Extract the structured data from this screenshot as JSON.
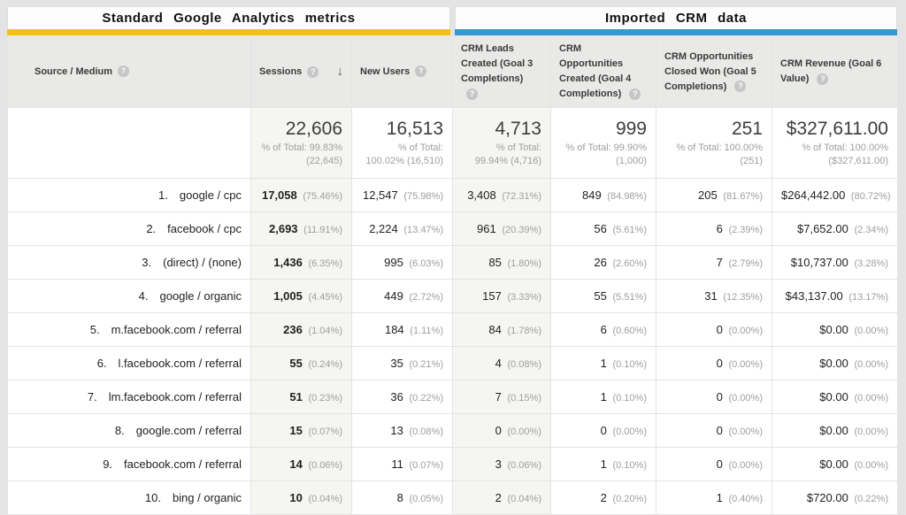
{
  "icons": {
    "help": "?",
    "sort_desc": "↓"
  },
  "groups": {
    "left": {
      "title": "Standard Google Analytics metrics",
      "accent_color": "#F4C20D"
    },
    "right": {
      "title": "Imported CRM data",
      "accent_color": "#3499D3"
    }
  },
  "table": {
    "columns": [
      {
        "id": "source",
        "label": "Source / Medium"
      },
      {
        "id": "sessions",
        "label": "Sessions",
        "sort": "descending"
      },
      {
        "id": "new_users",
        "label": "New Users"
      },
      {
        "id": "crm_leads",
        "label": "CRM Leads Created (Goal 3 Completions)"
      },
      {
        "id": "crm_opps",
        "label": "CRM Opportunities Created (Goal 4 Completions)"
      },
      {
        "id": "crm_closed",
        "label": "CRM Opportunities Closed Won (Goal 5 Completions)"
      },
      {
        "id": "crm_revenue",
        "label": "CRM Revenue (Goal 6 Value)"
      }
    ],
    "totals": {
      "sessions": {
        "value": "22,606",
        "pct": "% of Total: 99.83% (22,645)"
      },
      "new_users": {
        "value": "16,513",
        "pct": "% of Total: 100.02% (16,510)"
      },
      "crm_leads": {
        "value": "4,713",
        "pct": "% of Total: 99.94% (4,716)"
      },
      "crm_opps": {
        "value": "999",
        "pct": "% of Total: 99.90% (1,000)"
      },
      "crm_closed": {
        "value": "251",
        "pct": "% of Total: 100.00% (251)"
      },
      "crm_revenue": {
        "value": "$327,611.00",
        "pct": "% of Total: 100.00% ($327,611.00)"
      }
    },
    "rows": [
      {
        "index": "1.",
        "source": "google / cpc",
        "sessions": {
          "value": "17,058",
          "pct": "(75.46%)"
        },
        "new_users": {
          "value": "12,547",
          "pct": "(75.98%)"
        },
        "crm_leads": {
          "value": "3,408",
          "pct": "(72.31%)"
        },
        "crm_opps": {
          "value": "849",
          "pct": "(84.98%)"
        },
        "crm_closed": {
          "value": "205",
          "pct": "(81.67%)"
        },
        "crm_revenue": {
          "value": "$264,442.00",
          "pct": "(80.72%)"
        }
      },
      {
        "index": "2.",
        "source": "facebook / cpc",
        "sessions": {
          "value": "2,693",
          "pct": "(11.91%)"
        },
        "new_users": {
          "value": "2,224",
          "pct": "(13.47%)"
        },
        "crm_leads": {
          "value": "961",
          "pct": "(20.39%)"
        },
        "crm_opps": {
          "value": "56",
          "pct": "(5.61%)"
        },
        "crm_closed": {
          "value": "6",
          "pct": "(2.39%)"
        },
        "crm_revenue": {
          "value": "$7,652.00",
          "pct": "(2.34%)"
        }
      },
      {
        "index": "3.",
        "source": "(direct) / (none)",
        "sessions": {
          "value": "1,436",
          "pct": "(6.35%)"
        },
        "new_users": {
          "value": "995",
          "pct": "(6.03%)"
        },
        "crm_leads": {
          "value": "85",
          "pct": "(1.80%)"
        },
        "crm_opps": {
          "value": "26",
          "pct": "(2.60%)"
        },
        "crm_closed": {
          "value": "7",
          "pct": "(2.79%)"
        },
        "crm_revenue": {
          "value": "$10,737.00",
          "pct": "(3.28%)"
        }
      },
      {
        "index": "4.",
        "source": "google / organic",
        "sessions": {
          "value": "1,005",
          "pct": "(4.45%)"
        },
        "new_users": {
          "value": "449",
          "pct": "(2.72%)"
        },
        "crm_leads": {
          "value": "157",
          "pct": "(3.33%)"
        },
        "crm_opps": {
          "value": "55",
          "pct": "(5.51%)"
        },
        "crm_closed": {
          "value": "31",
          "pct": "(12.35%)"
        },
        "crm_revenue": {
          "value": "$43,137.00",
          "pct": "(13.17%)"
        }
      },
      {
        "index": "5.",
        "source": "m.facebook.com / referral",
        "sessions": {
          "value": "236",
          "pct": "(1.04%)"
        },
        "new_users": {
          "value": "184",
          "pct": "(1.11%)"
        },
        "crm_leads": {
          "value": "84",
          "pct": "(1.78%)"
        },
        "crm_opps": {
          "value": "6",
          "pct": "(0.60%)"
        },
        "crm_closed": {
          "value": "0",
          "pct": "(0.00%)"
        },
        "crm_revenue": {
          "value": "$0.00",
          "pct": "(0.00%)"
        }
      },
      {
        "index": "6.",
        "source": "l.facebook.com / referral",
        "sessions": {
          "value": "55",
          "pct": "(0.24%)"
        },
        "new_users": {
          "value": "35",
          "pct": "(0.21%)"
        },
        "crm_leads": {
          "value": "4",
          "pct": "(0.08%)"
        },
        "crm_opps": {
          "value": "1",
          "pct": "(0.10%)"
        },
        "crm_closed": {
          "value": "0",
          "pct": "(0.00%)"
        },
        "crm_revenue": {
          "value": "$0.00",
          "pct": "(0.00%)"
        }
      },
      {
        "index": "7.",
        "source": "lm.facebook.com / referral",
        "sessions": {
          "value": "51",
          "pct": "(0.23%)"
        },
        "new_users": {
          "value": "36",
          "pct": "(0.22%)"
        },
        "crm_leads": {
          "value": "7",
          "pct": "(0.15%)"
        },
        "crm_opps": {
          "value": "1",
          "pct": "(0.10%)"
        },
        "crm_closed": {
          "value": "0",
          "pct": "(0.00%)"
        },
        "crm_revenue": {
          "value": "$0.00",
          "pct": "(0.00%)"
        }
      },
      {
        "index": "8.",
        "source": "google.com / referral",
        "sessions": {
          "value": "15",
          "pct": "(0.07%)"
        },
        "new_users": {
          "value": "13",
          "pct": "(0.08%)"
        },
        "crm_leads": {
          "value": "0",
          "pct": "(0.00%)"
        },
        "crm_opps": {
          "value": "0",
          "pct": "(0.00%)"
        },
        "crm_closed": {
          "value": "0",
          "pct": "(0.00%)"
        },
        "crm_revenue": {
          "value": "$0.00",
          "pct": "(0.00%)"
        }
      },
      {
        "index": "9.",
        "source": "facebook.com / referral",
        "sessions": {
          "value": "14",
          "pct": "(0.06%)"
        },
        "new_users": {
          "value": "11",
          "pct": "(0.07%)"
        },
        "crm_leads": {
          "value": "3",
          "pct": "(0.06%)"
        },
        "crm_opps": {
          "value": "1",
          "pct": "(0.10%)"
        },
        "crm_closed": {
          "value": "0",
          "pct": "(0.00%)"
        },
        "crm_revenue": {
          "value": "$0.00",
          "pct": "(0.00%)"
        }
      },
      {
        "index": "10.",
        "source": "bing / organic",
        "sessions": {
          "value": "10",
          "pct": "(0.04%)"
        },
        "new_users": {
          "value": "8",
          "pct": "(0.05%)"
        },
        "crm_leads": {
          "value": "2",
          "pct": "(0.04%)"
        },
        "crm_opps": {
          "value": "2",
          "pct": "(0.20%)"
        },
        "crm_closed": {
          "value": "1",
          "pct": "(0.40%)"
        },
        "crm_revenue": {
          "value": "$720.00",
          "pct": "(0.22%)"
        }
      }
    ]
  }
}
